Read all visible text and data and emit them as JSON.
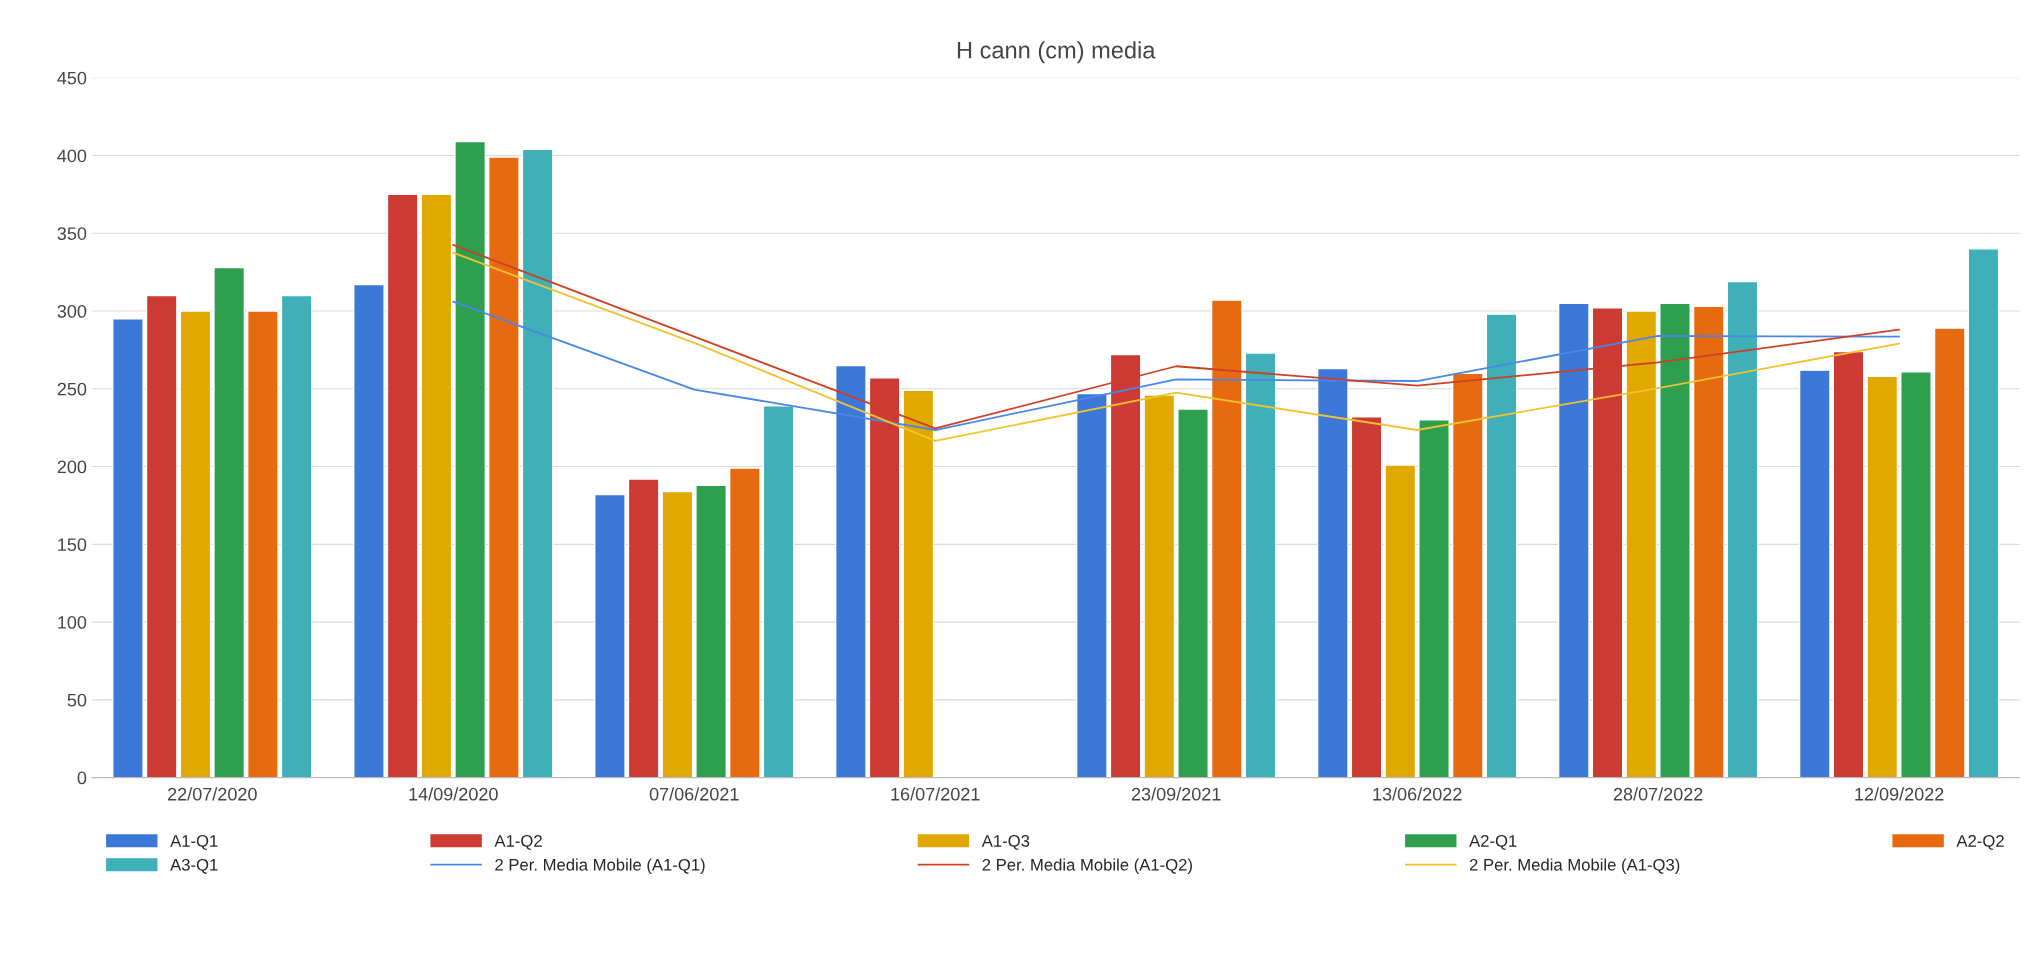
{
  "chart_data": {
    "type": "bar",
    "title": "H cann (cm) media",
    "categories": [
      "22/07/2020",
      "14/09/2020",
      "07/06/2021",
      "16/07/2021",
      "23/09/2021",
      "13/06/2022",
      "28/07/2022",
      "12/09/2022"
    ],
    "series": [
      {
        "name": "A1-Q1",
        "color": "#3c78d8",
        "values": [
          295,
          317,
          182,
          265,
          247,
          263,
          305,
          262
        ]
      },
      {
        "name": "A1-Q2",
        "color": "#cc3a33",
        "values": [
          310,
          375,
          192,
          257,
          272,
          232,
          302,
          274
        ]
      },
      {
        "name": "A1-Q3",
        "color": "#e0a800",
        "values": [
          300,
          375,
          184,
          249,
          246,
          201,
          300,
          258
        ]
      },
      {
        "name": "A2-Q1",
        "color": "#2e9e4f",
        "values": [
          328,
          409,
          188,
          null,
          237,
          230,
          305,
          261
        ]
      },
      {
        "name": "A2-Q2",
        "color": "#e86a10",
        "values": [
          300,
          399,
          199,
          null,
          307,
          260,
          303,
          289
        ]
      },
      {
        "name": "A3-Q1",
        "color": "#3fafb8",
        "values": [
          310,
          404,
          239,
          null,
          273,
          298,
          319,
          340
        ]
      },
      {
        "name": "2 Per. Media Mobile (A1-Q1)",
        "type": "line",
        "color": "#4a86e8",
        "values": [
          null,
          306,
          249.5,
          223.5,
          256,
          255,
          284,
          283.5
        ]
      },
      {
        "name": "2 Per. Media Mobile (A1-Q2)",
        "type": "line",
        "color": "#cc4125",
        "values": [
          null,
          342.5,
          283.5,
          224.5,
          264.5,
          252,
          267,
          288
        ]
      },
      {
        "name": "2 Per. Media Mobile (A1-Q3)",
        "type": "line",
        "color": "#f1c232",
        "values": [
          null,
          337.5,
          279.5,
          216.5,
          247.5,
          223.5,
          250.5,
          279
        ]
      }
    ],
    "ylim": [
      0,
      450
    ],
    "yticks": [
      0,
      50,
      100,
      150,
      200,
      250,
      300,
      350,
      400,
      450
    ],
    "grid": "y",
    "legend": "bottom"
  }
}
